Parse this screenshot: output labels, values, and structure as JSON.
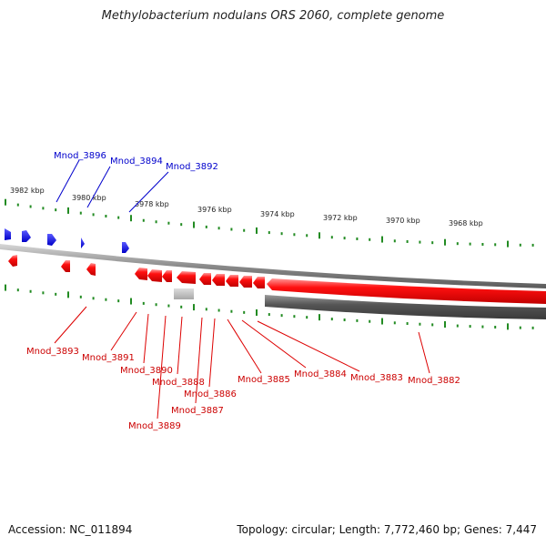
{
  "title": "Methylobacterium nodulans ORS 2060, complete genome",
  "footer": {
    "accession": "Accession: NC_011894",
    "stats": "Topology: circular; Length: 7,772,460 bp; Genes: 7,447"
  },
  "colors": {
    "forward_gene": "#0000ee",
    "reverse_gene": "#ee0000",
    "tick": "#228b22",
    "backbone": "#888888",
    "rna_feature": "#bbbbbb",
    "dark_feature": "#555555"
  },
  "kbp_labels": [
    "3982 kbp",
    "3980 kbp",
    "3978 kbp",
    "3976 kbp",
    "3974 kbp",
    "3972 kbp",
    "3970 kbp",
    "3968 kbp"
  ],
  "forward_genes": [
    "Mnod_3896",
    "Mnod_3894",
    "Mnod_3892"
  ],
  "reverse_genes": [
    "Mnod_3893",
    "Mnod_3891",
    "Mnod_3890",
    "Mnod_3888",
    "Mnod_3886",
    "Mnod_3887",
    "Mnod_3889",
    "Mnod_3885",
    "Mnod_3884",
    "Mnod_3883",
    "Mnod_3882"
  ]
}
